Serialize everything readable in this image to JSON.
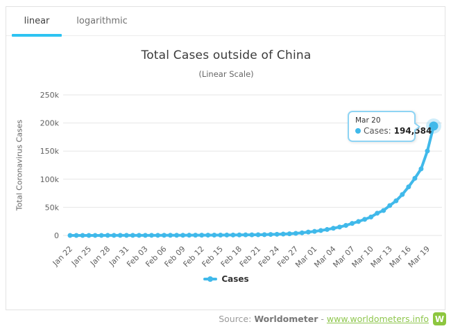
{
  "tabs": {
    "items": [
      {
        "label": "linear",
        "active": true
      },
      {
        "label": "logarithmic",
        "active": false
      }
    ]
  },
  "chart_data": {
    "type": "line",
    "title": "Total Cases outside of China",
    "subtitle": "(Linear Scale)",
    "xlabel": "",
    "ylabel": "Total Coronavirus Cases",
    "ylim": [
      0,
      250000
    ],
    "yticks": {
      "values": [
        0,
        50000,
        100000,
        150000,
        200000,
        250000
      ],
      "labels": [
        "0",
        "50k",
        "100k",
        "150k",
        "200k",
        "250k"
      ]
    },
    "grid": "horizontal",
    "legend_position": "bottom",
    "xtick_every": 3,
    "x": [
      "Jan 22",
      "Jan 23",
      "Jan 24",
      "Jan 25",
      "Jan 26",
      "Jan 27",
      "Jan 28",
      "Jan 29",
      "Jan 30",
      "Jan 31",
      "Feb 01",
      "Feb 02",
      "Feb 03",
      "Feb 04",
      "Feb 05",
      "Feb 06",
      "Feb 07",
      "Feb 08",
      "Feb 09",
      "Feb 10",
      "Feb 11",
      "Feb 12",
      "Feb 13",
      "Feb 14",
      "Feb 15",
      "Feb 16",
      "Feb 17",
      "Feb 18",
      "Feb 19",
      "Feb 20",
      "Feb 21",
      "Feb 22",
      "Feb 23",
      "Feb 24",
      "Feb 25",
      "Feb 26",
      "Feb 27",
      "Feb 28",
      "Feb 29",
      "Mar 01",
      "Mar 02",
      "Mar 03",
      "Mar 04",
      "Mar 05",
      "Mar 06",
      "Mar 07",
      "Mar 08",
      "Mar 09",
      "Mar 10",
      "Mar 11",
      "Mar 12",
      "Mar 13",
      "Mar 14",
      "Mar 15",
      "Mar 16",
      "Mar 17",
      "Mar 18",
      "Mar 19",
      "Mar 20"
    ],
    "series": [
      {
        "name": "Cases",
        "color": "#40b9ea",
        "values": [
          9,
          15,
          25,
          40,
          57,
          64,
          87,
          105,
          118,
          153,
          173,
          183,
          188,
          212,
          227,
          265,
          288,
          307,
          319,
          395,
          441,
          457,
          526,
          587,
          608,
          697,
          806,
          880,
          1013,
          1097,
          1200,
          1403,
          1769,
          2069,
          2459,
          2918,
          3664,
          4691,
          6009,
          7169,
          8774,
          10566,
          12747,
          14905,
          17873,
          21397,
          24727,
          28673,
          32778,
          39540,
          44377,
          53169,
          61518,
          72815,
          86424,
          101583,
          118381,
          150200,
          194584
        ]
      }
    ]
  },
  "tooltip": {
    "date": "Mar 20",
    "series_label": "Cases:",
    "value": "194,584"
  },
  "legend": {
    "label": "Cases"
  },
  "footer": {
    "source_label": "Source:",
    "source_name": "Worldometer",
    "separator": "-",
    "link_text": "www.worldometers.info",
    "logo_letter": "W"
  },
  "colors": {
    "accent_line": "#40b9ea",
    "tab_underline": "#2ec3f2",
    "tooltip_border": "#8ed4f4",
    "grid_line": "#e6e6e6",
    "link_green": "#8fc74e",
    "logo_green": "#8dc63f"
  }
}
